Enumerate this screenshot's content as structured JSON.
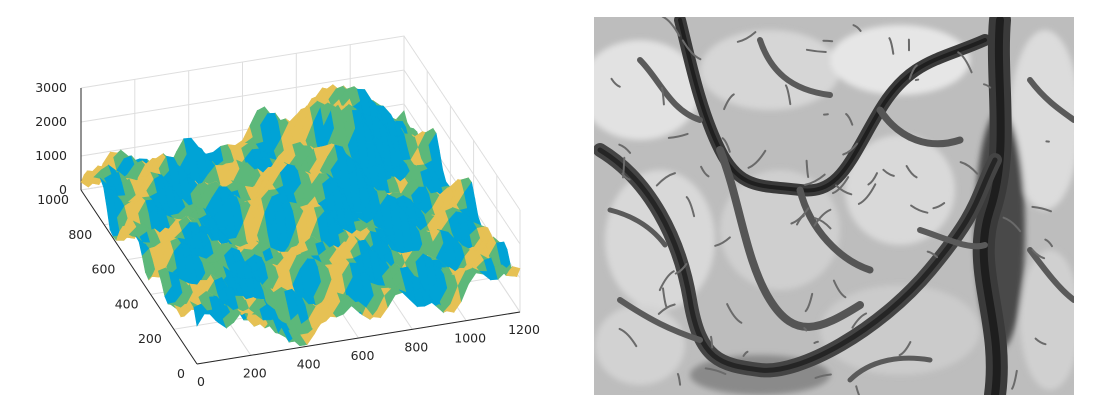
{
  "figure": {
    "panels": [
      "surface-3d-plot",
      "grayscale-elevation-image"
    ]
  },
  "chart_data": [
    {
      "type": "surface",
      "title": "",
      "xlabel": "",
      "ylabel": "",
      "zlabel": "",
      "x_ticks": [
        "0",
        "200",
        "400",
        "600",
        "800",
        "1000",
        "1200"
      ],
      "y_ticks": [
        "0",
        "200",
        "400",
        "600",
        "800",
        "1000"
      ],
      "z_ticks": [
        "0",
        "1000",
        "2000",
        "3000"
      ],
      "xlim": [
        0,
        1200
      ],
      "ylim": [
        0,
        1000
      ],
      "zlim": [
        0,
        3000
      ],
      "grid": true,
      "colors": {
        "face_light": "#e6c154",
        "face_dark": "#00a3d6",
        "face_mid": "#5cb87a",
        "axis": "#262626",
        "grid": "#dcdcdc"
      }
    },
    {
      "type": "heatmap",
      "title": "",
      "colormap": "gray",
      "colors": {
        "high": "#f2f2f2",
        "low": "#1a1a1a"
      }
    }
  ]
}
